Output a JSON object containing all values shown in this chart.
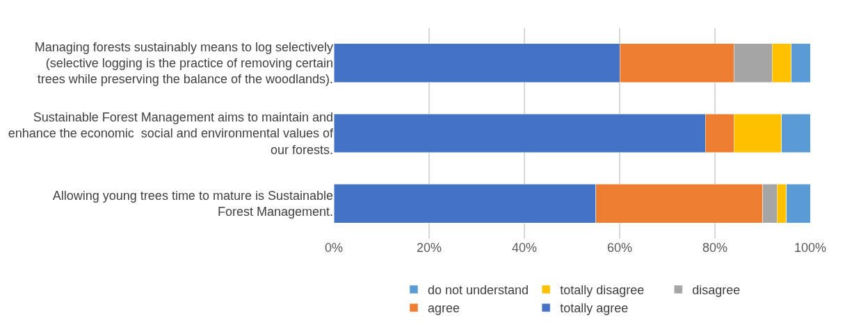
{
  "chart_data": {
    "type": "bar",
    "orientation": "horizontal",
    "stacked": true,
    "categories": [
      "Managing forests sustainably means to log selectively (selective logging is the practice of removing certain trees while preserving the balance of the woodlands).",
      "Sustainable Forest Management aims to maintain and enhance the economic  social and environmental values of our forests.",
      "Allowing young trees time to mature is Sustainable Forest Management."
    ],
    "series": [
      {
        "name": "totally agree",
        "color": "#4472c4",
        "values": [
          60,
          78,
          55
        ]
      },
      {
        "name": "agree",
        "color": "#ed7d31",
        "values": [
          24,
          6,
          35
        ]
      },
      {
        "name": "disagree",
        "color": "#a5a5a5",
        "values": [
          8,
          0,
          3
        ]
      },
      {
        "name": "totally disagree",
        "color": "#ffc000",
        "values": [
          4,
          10,
          2
        ]
      },
      {
        "name": "do not understand",
        "color": "#5b9bd5",
        "values": [
          4,
          6,
          5
        ]
      }
    ],
    "xlim": [
      0,
      100
    ],
    "xticks": [
      {
        "value": 0,
        "label": "0%"
      },
      {
        "value": 20,
        "label": "20%"
      },
      {
        "value": 40,
        "label": "40%"
      },
      {
        "value": 60,
        "label": "60%"
      },
      {
        "value": 80,
        "label": "80%"
      },
      {
        "value": 100,
        "label": "100%"
      }
    ],
    "grid": "x",
    "legend": "bottom"
  }
}
